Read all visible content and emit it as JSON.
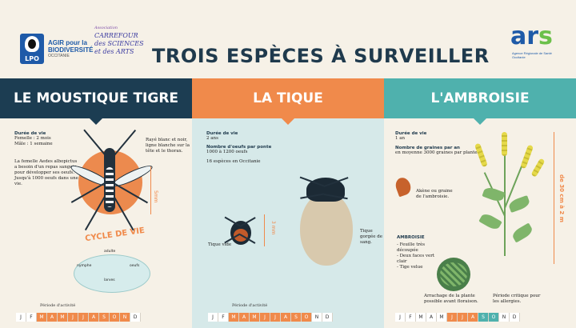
{
  "header": {
    "title": "TROIS ESPÈCES À SURVEILLER",
    "lpo_logo": "LPO",
    "agir_line1": "AGIR pour la",
    "agir_line2": "BIODIVERSITÉ",
    "agir_region": "OCCITANIE",
    "carrefour_assoc": "Association",
    "carrefour_name": "CARREFOUR des SCIENCES et des ARTS",
    "ars_logo_a": "ar",
    "ars_logo_s": "s",
    "ars_sub": "Agence Régionale de Santé Occitanie"
  },
  "moustique": {
    "title": "LE MOUSTIQUE TIGRE",
    "duree_label": "Durée de vie",
    "duree_f": "Femelle : 2 mois",
    "duree_m": "Mâle : 1 semaine",
    "description": "La femelle Aedes albopictus a besoin d'un repas sanguin pour développer ses oeufs. Jusqu'à 1000 oeufs dans une vie.",
    "rayures": "Rayé blanc et noir, ligne blanche sur la tête et le thorax.",
    "taille": "5mm",
    "cycle_title": "CYCLE DE VIE",
    "cycle_adulte": "adulte",
    "cycle_nymphe": "nymphe",
    "cycle_oeufs": "oeufs",
    "cycle_larves": "larves",
    "periode": "Période d'activité",
    "months": [
      "J",
      "F",
      "M",
      "A",
      "M",
      "J",
      "J",
      "A",
      "S",
      "O",
      "N",
      "D"
    ],
    "active": [
      2,
      3,
      4,
      5,
      6,
      7,
      8,
      9,
      10
    ]
  },
  "tique": {
    "title": "LA TIQUE",
    "duree_label": "Durée de vie",
    "duree_value": "2 ans",
    "oeufs_label": "Nombre d'oeufs par ponte",
    "oeufs_value": "1000 à 1200 oeufs",
    "especes": "16 espèces en Occitanie",
    "taille": "3 mm",
    "tique_vide": "Tique vide",
    "tique_gorgee": "Tique gorgée de sang.",
    "periode": "Période d'activité",
    "months": [
      "J",
      "F",
      "M",
      "A",
      "M",
      "J",
      "J",
      "A",
      "S",
      "O",
      "N",
      "D"
    ],
    "active": [
      2,
      3,
      4,
      5,
      6,
      7,
      8,
      9
    ]
  },
  "ambroisie": {
    "title": "L'AMBROISIE",
    "duree_label": "Durée de vie",
    "duree_value": "1 an",
    "graines_label": "Nombre de graines par an",
    "graines_value": "en moyenne 3000 graines par plante",
    "akene": "Akène ou graine de l'ambroisie.",
    "taille": "de 30 cm à 2 m",
    "ambroisie_label": "AMBROISIE",
    "feuille": "- Feuille très découpée",
    "faces": "- Deux faces vert clair",
    "tige": "- Tige velue",
    "arrachage": "Arrachage de la plante possible avant floraison.",
    "periode_critique": "Période critique pour les allergies.",
    "months": [
      "J",
      "F",
      "M",
      "A",
      "M",
      "J",
      "J",
      "A",
      "S",
      "O",
      "N",
      "D"
    ],
    "active": [
      5,
      6,
      7
    ],
    "active2": [
      7,
      8,
      9
    ]
  }
}
